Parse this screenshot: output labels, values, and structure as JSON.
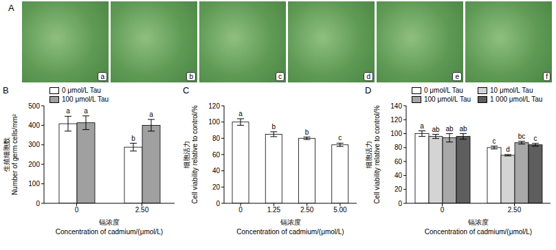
{
  "panel_a": {
    "label": "A",
    "images": [
      "a",
      "b",
      "c",
      "d",
      "e",
      "f"
    ]
  },
  "chart_data": [
    {
      "label": "B",
      "type": "bar",
      "categories": [
        "0",
        "2.50"
      ],
      "series": [
        {
          "name": "0 μmol/L Tau",
          "color": "#ffffff",
          "values": [
            408,
            288
          ],
          "errors": [
            38,
            20
          ],
          "letters": [
            "a",
            "b"
          ]
        },
        {
          "name": "100 μmol/L Tau",
          "color": "#a0a0a0",
          "values": [
            413,
            400
          ],
          "errors": [
            35,
            30
          ],
          "letters": [
            "a",
            "a"
          ]
        }
      ],
      "x_label": [
        "镉浓度",
        "Concentration of cadmium/(μmol/L)"
      ],
      "y_label": [
        "生殖细胞数",
        "Number of germ cells/mm²"
      ],
      "ylim": [
        0,
        500
      ],
      "yticks": [
        0,
        100,
        200,
        300,
        400,
        500
      ],
      "legend": "upper left"
    },
    {
      "label": "C",
      "type": "bar",
      "categories": [
        "0",
        "1.25",
        "2.50",
        "5.00"
      ],
      "color": "#ffffff",
      "values": [
        100,
        85,
        80,
        72
      ],
      "errors": [
        4,
        3,
        1.5,
        2
      ],
      "letters": [
        "a",
        "b",
        "b",
        "c"
      ],
      "x_label": [
        "镉浓度",
        "Concentration of cadmium/(μmol/L)"
      ],
      "y_label": [
        "细胞活力",
        "Cell viability relative to control/%"
      ],
      "ylim": [
        0,
        120
      ],
      "yticks": [
        0,
        20,
        40,
        60,
        80,
        100,
        120
      ]
    },
    {
      "label": "D",
      "type": "bar",
      "categories": [
        "0",
        "2.50"
      ],
      "series": [
        {
          "name": "0 μmol/L Tau",
          "color": "#ffffff",
          "values": [
            100,
            80
          ],
          "errors": [
            4,
            2
          ],
          "letters": [
            "a",
            "c"
          ]
        },
        {
          "name": "10 μmol/L Tau",
          "color": "#d4d4d4",
          "values": [
            96,
            69
          ],
          "errors": [
            3,
            1
          ],
          "letters": [
            "ab",
            "d"
          ]
        },
        {
          "name": "100 μmol/L Tau",
          "color": "#a8a8a8",
          "values": [
            94,
            87
          ],
          "errors": [
            6,
            2
          ],
          "letters": [
            "ab",
            "bc"
          ]
        },
        {
          "name": "1 000 μmol/L Tau",
          "color": "#5e5e5e",
          "values": [
            96,
            84
          ],
          "errors": [
            4,
            2
          ],
          "letters": [
            "ab",
            "c"
          ]
        }
      ],
      "x_label": [
        "镉浓度",
        "Concentration of cadmium/(μmol/L)"
      ],
      "y_label": [
        "细胞活力",
        "Cell viability relative to control/%"
      ],
      "ylim": [
        0,
        140
      ],
      "yticks": [
        0,
        20,
        40,
        60,
        80,
        100,
        120,
        140
      ],
      "legend": "upper left"
    }
  ]
}
